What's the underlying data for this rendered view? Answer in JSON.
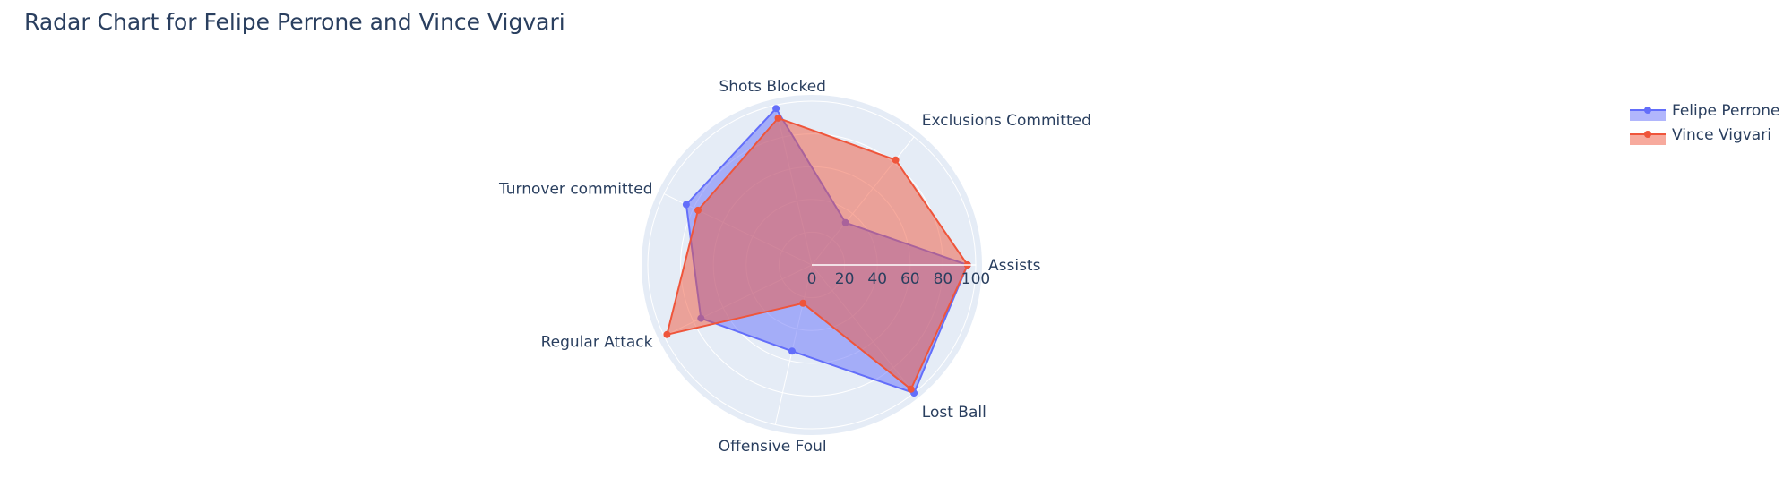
{
  "chart_data": {
    "type": "radar",
    "title": "Radar Chart for Felipe Perrone and Vince Vigvari",
    "axes": [
      "Assists",
      "Exclusions Committed",
      "Shots Blocked",
      "Turnover committed",
      "Regular Attack",
      "Offensive Foul",
      "Lost Ball"
    ],
    "radial_range": [
      0,
      100
    ],
    "radial_ticks": [
      "0",
      "20",
      "40",
      "60",
      "80",
      "100"
    ],
    "grid": true,
    "legend_position": "top-right",
    "series": [
      {
        "name": "Felipe Perrone",
        "color": "#636efa",
        "fill": "rgba(99,110,250,0.5)",
        "values": [
          95,
          33,
          98,
          85,
          75,
          54,
          100
        ]
      },
      {
        "name": "Vince Vigvari",
        "color": "#ef553b",
        "fill": "rgba(239,85,59,0.5)",
        "values": [
          95,
          82,
          92,
          77,
          98,
          24,
          97
        ]
      }
    ]
  }
}
